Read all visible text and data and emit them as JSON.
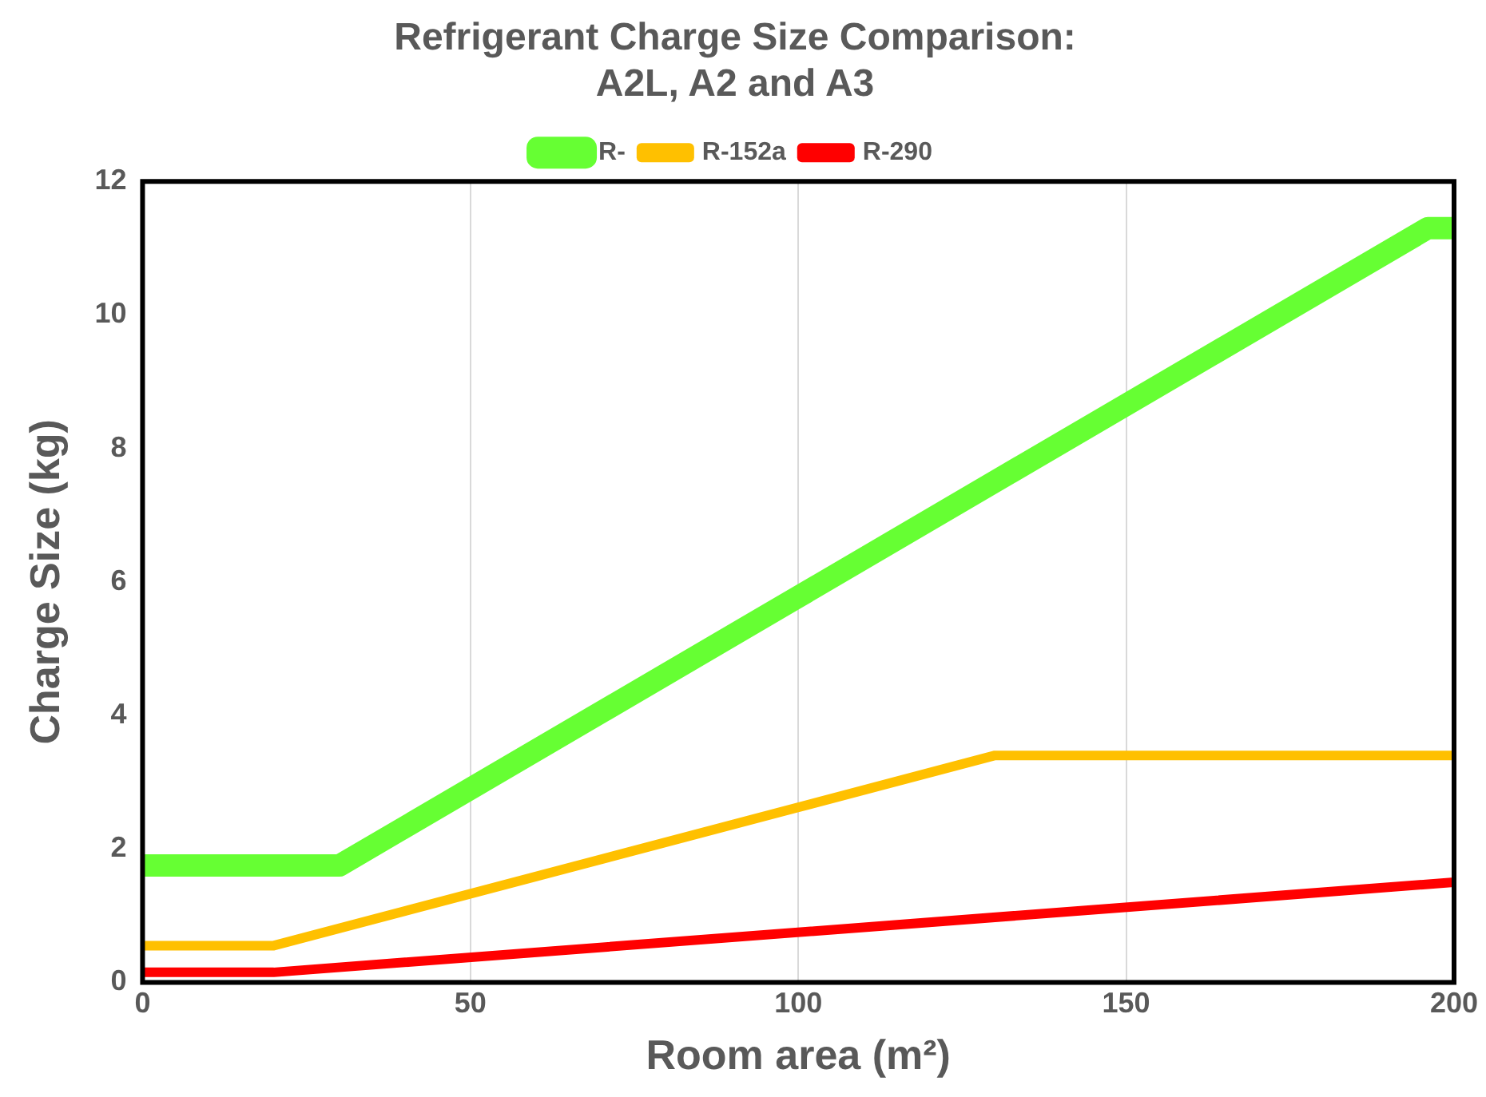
{
  "chart_data": {
    "type": "line",
    "title": "Refrigerant Charge Size Comparison:\nA2L, A2 and A3",
    "xlabel": "Room area (m²)",
    "ylabel": "Charge Size (kg)",
    "xlim": [
      0,
      200
    ],
    "xticks": [
      0,
      50,
      100,
      150,
      200
    ],
    "ylim": [
      0,
      12
    ],
    "yticks": [
      0,
      2,
      4,
      6,
      8,
      10,
      12
    ],
    "grid": "x",
    "legend": "top",
    "marker": "none",
    "line_style": "solid",
    "series": [
      {
        "name": "R-",
        "color": "#66ff33",
        "x": [
          0,
          30,
          196,
          200
        ],
        "values": [
          1.75,
          1.75,
          11.3,
          11.3
        ]
      },
      {
        "name": "R-152a",
        "color": "#ffc000",
        "x": [
          0,
          20,
          130,
          200
        ],
        "values": [
          0.55,
          0.55,
          3.4,
          3.4
        ]
      },
      {
        "name": "R-290",
        "color": "#ff0000",
        "x": [
          0,
          20,
          200
        ],
        "values": [
          0.15,
          0.15,
          1.5
        ]
      }
    ]
  }
}
